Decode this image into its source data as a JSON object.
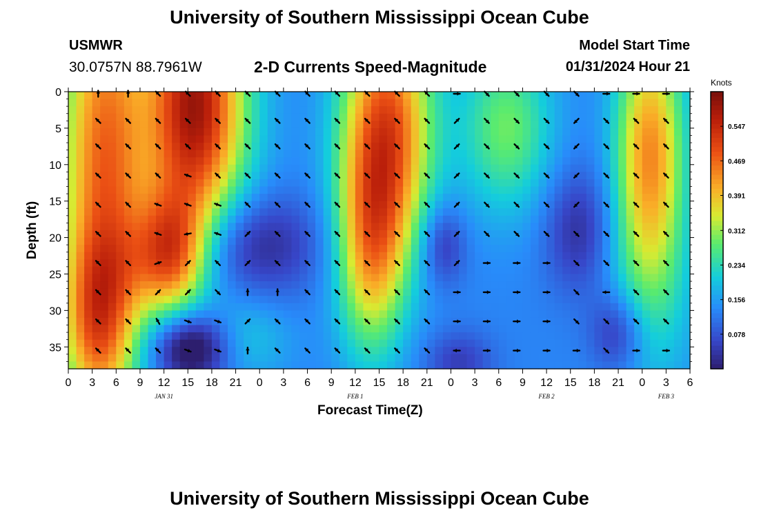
{
  "page": {
    "title_top": "University of Southern Mississippi Ocean Cube",
    "title_bottom": "University of Southern Mississippi Ocean Cube",
    "station": "USMWR",
    "coordinates": "30.0757N  88.7961W",
    "chart_title": "2-D Currents Speed-Magnitude",
    "model_start_label": "Model Start Time",
    "model_start_value": "01/31/2024 Hour 21"
  },
  "colors": {
    "arrow": "#000000",
    "frame": "#000000",
    "background": "#ffffff"
  },
  "chart_data": {
    "type": "heatmap",
    "title": "2-D Currents Speed-Magnitude",
    "xlabel": "Forecast Time(Z)",
    "ylabel": "Depth (ft)",
    "x_tick_labels": [
      "0",
      "3",
      "6",
      "9",
      "12",
      "15",
      "18",
      "21",
      "0",
      "3",
      "6",
      "9",
      "12",
      "15",
      "18",
      "21",
      "0",
      "3",
      "6",
      "9",
      "12",
      "15",
      "18",
      "21",
      "0",
      "3",
      "6"
    ],
    "x_range_hours": [
      0,
      78
    ],
    "y_ticks": [
      0,
      5,
      10,
      15,
      20,
      25,
      30,
      35
    ],
    "y_range": [
      0,
      38
    ],
    "date_labels": [
      {
        "text": "JAN 31",
        "hour": 12
      },
      {
        "text": "FEB 1",
        "hour": 36
      },
      {
        "text": "FEB 2",
        "hour": 60
      },
      {
        "text": "FEB 3",
        "hour": 75
      }
    ],
    "colorbar": {
      "label": "Knots",
      "min": 0,
      "max": 0.625,
      "ticks": [
        "0.547",
        "0.469",
        "0.391",
        "0.312",
        "0.234",
        "0.156",
        "0.078"
      ],
      "tick_values": [
        0.547,
        0.469,
        0.391,
        0.312,
        0.234,
        0.156,
        0.078
      ]
    },
    "speed_blobs": [
      {
        "hour": 4.5,
        "depth": 10,
        "sh": 4,
        "sd": 22,
        "amp": 0.34
      },
      {
        "hour": 3.5,
        "depth": 32,
        "sh": 3,
        "sd": 8,
        "amp": 0.2
      },
      {
        "hour": 15.5,
        "depth": 2,
        "sh": 4,
        "sd": 12,
        "amp": 0.42
      },
      {
        "hour": 13,
        "depth": 22,
        "sh": 3,
        "sd": 6,
        "amp": 0.28
      },
      {
        "hour": 40,
        "depth": 5,
        "sh": 4,
        "sd": 12,
        "amp": 0.36
      },
      {
        "hour": 38,
        "depth": 22,
        "sh": 3,
        "sd": 10,
        "amp": 0.24
      },
      {
        "hour": 20,
        "depth": 2,
        "sh": 4,
        "sd": 14,
        "amp": 0.07
      },
      {
        "hour": 55,
        "depth": 5,
        "sh": 4,
        "sd": 8,
        "amp": 0.16
      },
      {
        "hour": 73,
        "depth": 8,
        "sh": 3,
        "sd": 12,
        "amp": 0.3
      },
      {
        "hour": 73,
        "depth": 28,
        "sh": 4,
        "sd": 10,
        "amp": 0.08
      },
      {
        "hour": 22,
        "depth": 34,
        "sh": 4,
        "sd": 4,
        "amp": 0.07
      },
      {
        "hour": 9,
        "depth": 24,
        "sh": 4,
        "sd": 5,
        "amp": 0.06
      },
      {
        "hour": 15.5,
        "depth": 35,
        "sh": 3.5,
        "sd": 3.5,
        "amp": -0.2
      },
      {
        "hour": 23,
        "depth": 21,
        "sh": 6,
        "sd": 5,
        "amp": -0.12
      },
      {
        "hour": 47,
        "depth": 21,
        "sh": 2,
        "sd": 4,
        "amp": -0.1
      },
      {
        "hour": 64,
        "depth": 19,
        "sh": 3,
        "sd": 6,
        "amp": -0.1
      },
      {
        "hour": 69,
        "depth": 33,
        "sh": 2.5,
        "sd": 4,
        "amp": -0.11
      },
      {
        "hour": 49,
        "depth": 37,
        "sh": 3,
        "sd": 3,
        "amp": -0.08
      }
    ],
    "speed_base": 0.13,
    "vector_hours": [
      3.75,
      7.5,
      11.25,
      15,
      18.75,
      22.5,
      26.25,
      30,
      33.75,
      37.5,
      41.25,
      45,
      48.75,
      52.5,
      56.25,
      60,
      63.75,
      67.5,
      71.25,
      75
    ],
    "vector_depths": [
      0,
      4,
      7.5,
      11.5,
      15.5,
      19.5,
      23.5,
      27.5,
      31.5,
      35.5
    ],
    "vector_direction_deg": [
      [
        0,
        315,
        315,
        315,
        315,
        315,
        315,
        315,
        315,
        315
      ],
      [
        0,
        315,
        315,
        315,
        315,
        315,
        315,
        315,
        315,
        315
      ],
      [
        315,
        315,
        315,
        315,
        290,
        290,
        70,
        45,
        330,
        315
      ],
      [
        315,
        315,
        315,
        290,
        290,
        260,
        45,
        45,
        110,
        110
      ],
      [
        315,
        315,
        315,
        315,
        290,
        290,
        315,
        135,
        110,
        110
      ],
      [
        315,
        315,
        315,
        315,
        315,
        45,
        45,
        0,
        45,
        0
      ],
      [
        315,
        315,
        315,
        315,
        315,
        315,
        315,
        0,
        315,
        315
      ],
      [
        315,
        315,
        315,
        315,
        315,
        315,
        315,
        315,
        315,
        315
      ],
      [
        315,
        315,
        315,
        315,
        315,
        315,
        315,
        315,
        315,
        315
      ],
      [
        315,
        315,
        315,
        315,
        315,
        315,
        315,
        315,
        315,
        315
      ],
      [
        315,
        315,
        315,
        315,
        315,
        315,
        315,
        315,
        315,
        315
      ],
      [
        315,
        315,
        315,
        315,
        315,
        315,
        315,
        315,
        315,
        315
      ],
      [
        90,
        45,
        45,
        45,
        45,
        45,
        45,
        90,
        90,
        270
      ],
      [
        135,
        135,
        135,
        135,
        135,
        135,
        90,
        90,
        90,
        90
      ],
      [
        135,
        135,
        135,
        135,
        135,
        135,
        90,
        90,
        90,
        90
      ],
      [
        135,
        135,
        135,
        135,
        135,
        135,
        90,
        90,
        90,
        90
      ],
      [
        135,
        225,
        225,
        225,
        225,
        135,
        135,
        135,
        135,
        90
      ],
      [
        90,
        135,
        135,
        135,
        135,
        135,
        135,
        270,
        135,
        135
      ],
      [
        90,
        315,
        315,
        315,
        315,
        315,
        315,
        315,
        315,
        90
      ],
      [
        90,
        315,
        315,
        315,
        315,
        315,
        315,
        315,
        315,
        90
      ]
    ]
  }
}
